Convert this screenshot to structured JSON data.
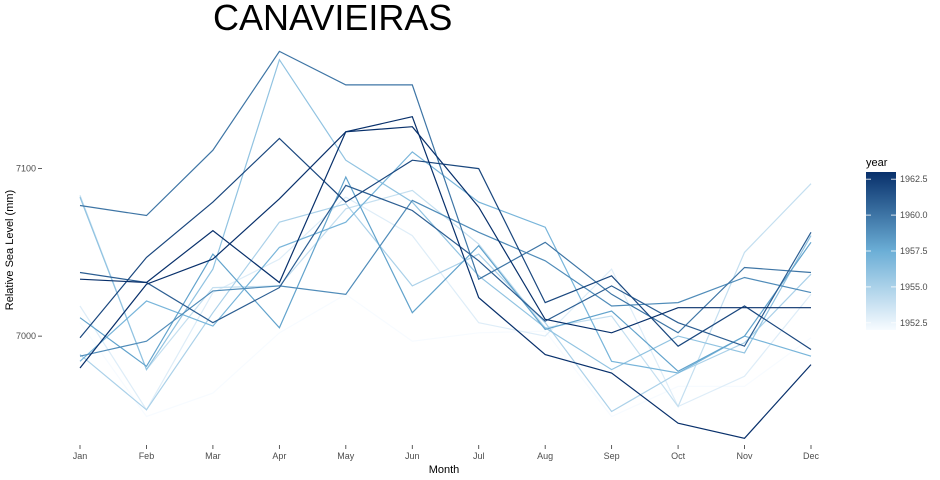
{
  "chart_data": {
    "type": "line",
    "title": "CANAVIEIRAS",
    "xlabel": "Month",
    "ylabel": "Relative Sea Level (mm)",
    "categories": [
      "Jan",
      "Feb",
      "Mar",
      "Apr",
      "May",
      "Jun",
      "Jul",
      "Aug",
      "Sep",
      "Oct",
      "Nov",
      "Dec"
    ],
    "ylim": [
      6938,
      7172
    ],
    "yticks": [
      7000,
      7100
    ],
    "ytick_labels": [
      "7000",
      "7100"
    ],
    "grid": false,
    "color_scale": {
      "title": "year",
      "min": 1952,
      "max": 1963,
      "low_color": "#f7fbff",
      "high_color": "#08306b",
      "ticks": [
        1952.5,
        1955.0,
        1957.5,
        1960.0,
        1962.5
      ],
      "tick_labels": [
        "1952.5",
        "1955.0",
        "1957.5",
        "1960.0",
        "1962.5"
      ],
      "position": "right"
    },
    "series": [
      {
        "year": 1952,
        "values": [
          7008,
          6952,
          6966,
          7002,
          7025,
          6997,
          7002,
          7003,
          6952,
          6970,
          6970,
          6999
        ]
      },
      {
        "year": 1953,
        "values": [
          7018,
          6956,
          7026,
          7046,
          7083,
          7060,
          7008,
          7000,
          7040,
          6958,
          6976,
          7025
        ]
      },
      {
        "year": 1954,
        "values": [
          7084,
          6980,
          7029,
          7030,
          7076,
          7087,
          7055,
          7005,
          7012,
          6958,
          7050,
          7091
        ]
      },
      {
        "year": 1955,
        "values": [
          6989,
          6956,
          7014,
          7068,
          7079,
          7030,
          7049,
          7008,
          6955,
          6978,
          6996,
          7037
        ]
      },
      {
        "year": 1956,
        "values": [
          7083,
          6980,
          7040,
          7165,
          7105,
          7080,
          7036,
          7005,
          6980,
          7000,
          6990,
          7060
        ]
      },
      {
        "year": 1957,
        "values": [
          6985,
          7021,
          7006,
          7053,
          7068,
          7110,
          7080,
          7065,
          6985,
          6978,
          7000,
          6988
        ]
      },
      {
        "year": 1958,
        "values": [
          7011,
          6982,
          7049,
          7005,
          7095,
          7014,
          7054,
          7004,
          7015,
          6979,
          7000,
          7056
        ]
      },
      {
        "year": 1959,
        "values": [
          6988,
          6997,
          7027,
          7030,
          7025,
          7081,
          7062,
          7045,
          7018,
          7020,
          7035,
          7026
        ]
      },
      {
        "year": 1960,
        "values": [
          7078,
          7072,
          7111,
          7170,
          7150,
          7150,
          7034,
          7056,
          7025,
          7002,
          7041,
          7038
        ]
      },
      {
        "year": 1961,
        "values": [
          7038,
          7032,
          7008,
          7029,
          7090,
          7075,
          7045,
          7009,
          7030,
          7008,
          6994,
          7062
        ]
      },
      {
        "year": 1962,
        "values": [
          6999,
          7047,
          7080,
          7118,
          7080,
          7105,
          7100,
          7020,
          7036,
          6994,
          7018,
          6992
        ]
      },
      {
        "year": 1963,
        "values": [
          7034,
          7032,
          7063,
          7032,
          7122,
          7131,
          7023,
          6989,
          6978,
          6948,
          6939,
          6983
        ]
      },
      {
        "year": 1963,
        "values": [
          6981,
          7031,
          7046,
          7082,
          7122,
          7125,
          7077,
          7010,
          7002,
          7017,
          7017,
          7017
        ]
      }
    ]
  }
}
